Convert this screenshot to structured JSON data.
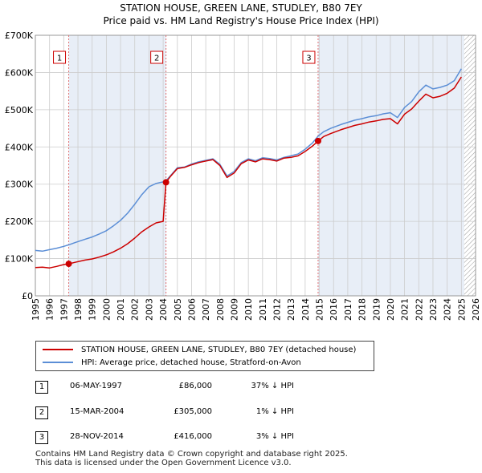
{
  "header": {
    "title": "STATION HOUSE, GREEN LANE, STUDLEY, B80 7EY",
    "subtitle": "Price paid vs. HM Land Registry's House Price Index (HPI)"
  },
  "colors": {
    "price_line": "#cc0000",
    "hpi_line": "#5b8ed6",
    "marker_line": "#e07070",
    "grid": "#cccccc",
    "shade": "#e8eef7",
    "hatch": "#999999"
  },
  "chart_data": {
    "type": "line",
    "title": "Price paid vs. HM Land Registry's House Price Index (HPI)",
    "xlabel": "",
    "ylabel": "",
    "xlim": [
      1995,
      2026
    ],
    "ylim": [
      0,
      700000
    ],
    "grid": true,
    "x_ticks": [
      "1995",
      "1996",
      "1997",
      "1998",
      "1999",
      "2000",
      "2001",
      "2002",
      "2003",
      "2004",
      "2005",
      "2006",
      "2007",
      "2008",
      "2009",
      "2010",
      "2011",
      "2012",
      "2013",
      "2014",
      "2015",
      "2016",
      "2017",
      "2018",
      "2019",
      "2020",
      "2021",
      "2022",
      "2023",
      "2024",
      "2025",
      "2026"
    ],
    "y_ticks": [
      {
        "value": 0,
        "label": "£0"
      },
      {
        "value": 100000,
        "label": "£100K"
      },
      {
        "value": 200000,
        "label": "£200K"
      },
      {
        "value": 300000,
        "label": "£300K"
      },
      {
        "value": 400000,
        "label": "£400K"
      },
      {
        "value": 500000,
        "label": "£500K"
      },
      {
        "value": 600000,
        "label": "£600K"
      },
      {
        "value": 700000,
        "label": "£700K"
      }
    ],
    "series": [
      {
        "name": "STATION HOUSE, GREEN LANE, STUDLEY, B80 7EY (detached house)",
        "color": "#cc0000",
        "x": [
          1995.0,
          1995.5,
          1996.0,
          1996.5,
          1997.0,
          1997.35,
          1997.8,
          1998.5,
          1999.0,
          1999.5,
          2000.0,
          2000.5,
          2001.0,
          2001.5,
          2002.0,
          2002.5,
          2003.0,
          2003.5,
          2004.0,
          2004.2,
          2004.5,
          2005.0,
          2005.5,
          2006.0,
          2006.5,
          2007.0,
          2007.5,
          2008.0,
          2008.5,
          2009.0,
          2009.5,
          2010.0,
          2010.5,
          2011.0,
          2011.5,
          2012.0,
          2012.5,
          2013.0,
          2013.5,
          2014.0,
          2014.5,
          2014.91,
          2015.3,
          2015.8,
          2016.5,
          2017.0,
          2017.5,
          2018.0,
          2018.5,
          2019.0,
          2019.5,
          2020.0,
          2020.5,
          2021.0,
          2021.5,
          2022.0,
          2022.5,
          2023.0,
          2023.5,
          2024.0,
          2024.5,
          2025.0
        ],
        "y": [
          76000,
          77000,
          75000,
          79000,
          84000,
          86000,
          90000,
          96000,
          99000,
          104000,
          110000,
          118000,
          128000,
          140000,
          155000,
          172000,
          185000,
          196000,
          200000,
          305000,
          320000,
          342000,
          345000,
          352000,
          358000,
          362000,
          366000,
          350000,
          318000,
          330000,
          355000,
          365000,
          360000,
          368000,
          366000,
          362000,
          370000,
          372000,
          376000,
          388000,
          402000,
          416000,
          428000,
          436000,
          446000,
          452000,
          458000,
          462000,
          467000,
          470000,
          474000,
          476000,
          462000,
          488000,
          502000,
          523000,
          542000,
          532000,
          536000,
          544000,
          558000,
          588000
        ]
      },
      {
        "name": "HPI: Average price, detached house, Stratford-on-Avon",
        "color": "#5b8ed6",
        "x": [
          1995.0,
          1995.5,
          1996.0,
          1996.5,
          1997.0,
          1997.35,
          1997.8,
          1998.5,
          1999.0,
          1999.5,
          2000.0,
          2000.5,
          2001.0,
          2001.5,
          2002.0,
          2002.5,
          2003.0,
          2003.5,
          2004.0,
          2004.2,
          2004.5,
          2005.0,
          2005.5,
          2006.0,
          2006.5,
          2007.0,
          2007.5,
          2008.0,
          2008.5,
          2009.0,
          2009.5,
          2010.0,
          2010.5,
          2011.0,
          2011.5,
          2012.0,
          2012.5,
          2013.0,
          2013.5,
          2014.0,
          2014.5,
          2014.91,
          2015.3,
          2015.8,
          2016.5,
          2017.0,
          2017.5,
          2018.0,
          2018.5,
          2019.0,
          2019.5,
          2020.0,
          2020.5,
          2021.0,
          2021.5,
          2022.0,
          2022.5,
          2023.0,
          2023.5,
          2024.0,
          2024.5,
          2025.0
        ],
        "y": [
          122000,
          120000,
          124000,
          128000,
          133000,
          137000,
          143000,
          152000,
          158000,
          166000,
          175000,
          188000,
          203000,
          222000,
          246000,
          272000,
          293000,
          302000,
          306000,
          309000,
          322000,
          344000,
          346000,
          354000,
          360000,
          364000,
          368000,
          353000,
          322000,
          334000,
          358000,
          368000,
          363000,
          371000,
          369000,
          365000,
          372000,
          376000,
          381000,
          394000,
          410000,
          429000,
          441000,
          450000,
          460000,
          466000,
          472000,
          476000,
          481000,
          484000,
          489000,
          492000,
          479000,
          506000,
          522000,
          548000,
          566000,
          556000,
          560000,
          566000,
          578000,
          610000
        ]
      }
    ],
    "sales": [
      {
        "label": "1",
        "x": 1997.35,
        "price": 86000
      },
      {
        "label": "2",
        "x": 2004.2,
        "price": 305000
      },
      {
        "label": "3",
        "x": 2014.91,
        "price": 416000
      }
    ],
    "shaded_ranges": [
      [
        1997.35,
        2004.2
      ],
      [
        2014.91,
        2025.2
      ]
    ],
    "hatched_from": 2025.2
  },
  "legend": {
    "items": [
      {
        "label": "STATION HOUSE, GREEN LANE, STUDLEY, B80 7EY (detached house)"
      },
      {
        "label": "HPI: Average price, detached house, Stratford-on-Avon"
      }
    ]
  },
  "transactions": [
    {
      "num": "1",
      "date": "06-MAY-1997",
      "price": "£86,000",
      "hpi": "37% ↓ HPI"
    },
    {
      "num": "2",
      "date": "15-MAR-2004",
      "price": "£305,000",
      "hpi": "1% ↓ HPI"
    },
    {
      "num": "3",
      "date": "28-NOV-2014",
      "price": "£416,000",
      "hpi": "3% ↓ HPI"
    }
  ],
  "footer": {
    "line1": "Contains HM Land Registry data © Crown copyright and database right 2025.",
    "line2": "This data is licensed under the Open Government Licence v3.0."
  }
}
